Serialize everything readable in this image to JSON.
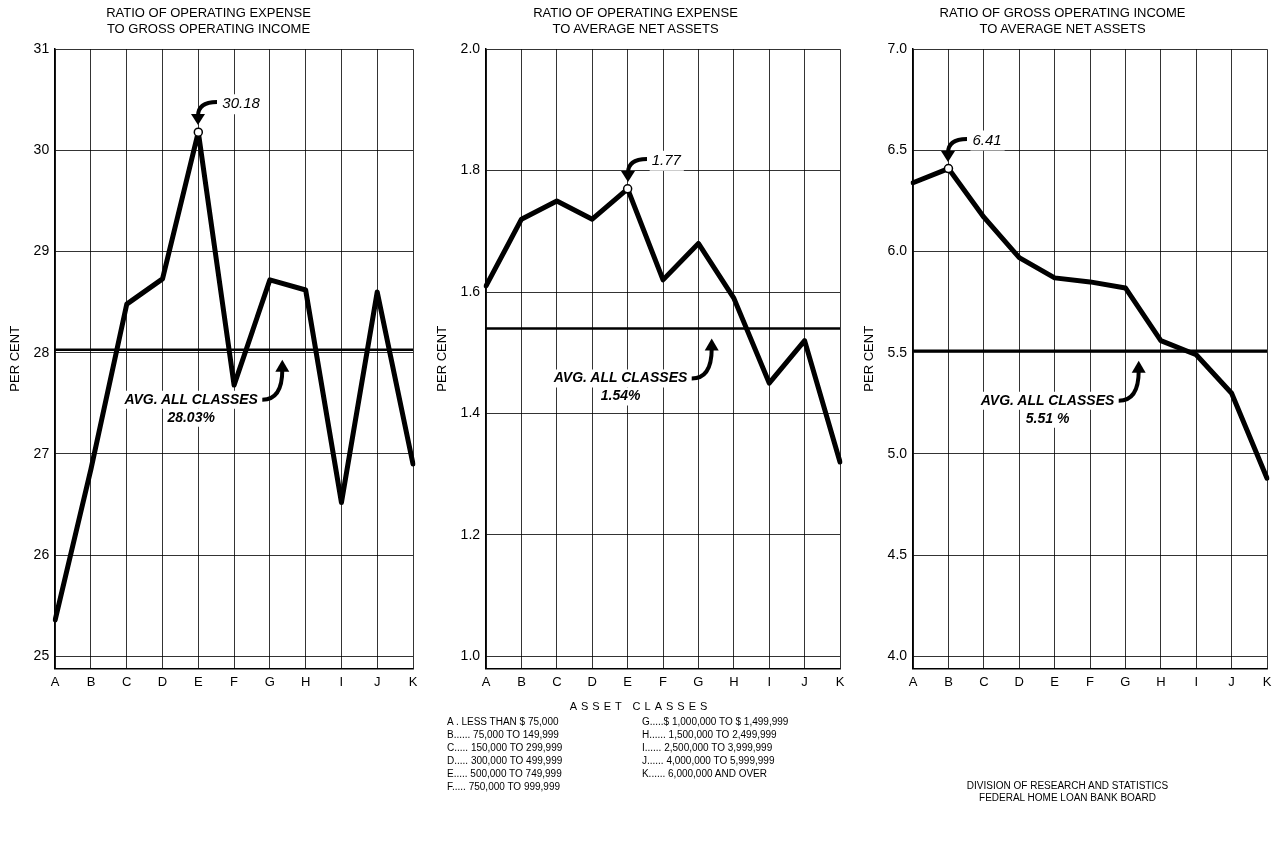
{
  "chart_data": [
    {
      "type": "line",
      "title": "RATIO OF OPERATING EXPENSE\nTO GROSS OPERATING INCOME",
      "ylabel": "PER CENT",
      "categories": [
        "A",
        "B",
        "C",
        "D",
        "E",
        "F",
        "G",
        "H",
        "I",
        "J",
        "K"
      ],
      "series": [
        {
          "color": "#000000",
          "values": [
            25.36,
            26.85,
            28.48,
            28.73,
            30.18,
            27.68,
            28.72,
            28.62,
            26.52,
            28.6,
            26.9
          ]
        }
      ],
      "ylim": [
        24.88,
        31
      ],
      "yticks": [
        25,
        26,
        27,
        28,
        29,
        30,
        31
      ],
      "grid": true,
      "legend": false,
      "marker": "none",
      "line_style": "solid",
      "ref_lines": [
        {
          "axis": "y",
          "value": 28.03,
          "label": "AVG. ALL CLASSES\n28.03%"
        }
      ],
      "annotations": [
        {
          "text": "30.18",
          "x": "E",
          "y": 30.18
        }
      ]
    },
    {
      "type": "line",
      "title": "RATIO OF OPERATING EXPENSE\nTO AVERAGE NET ASSETS",
      "ylabel": "PER CENT",
      "categories": [
        "A",
        "B",
        "C",
        "D",
        "E",
        "F",
        "G",
        "H",
        "I",
        "J",
        "K"
      ],
      "series": [
        {
          "color": "#000000",
          "values": [
            1.61,
            1.72,
            1.75,
            1.72,
            1.77,
            1.62,
            1.68,
            1.59,
            1.45,
            1.52,
            1.32
          ]
        }
      ],
      "ylim": [
        0.98,
        2.0
      ],
      "yticks": [
        {
          "value": 1.0,
          "label": "1.0"
        },
        1.2,
        1.4,
        1.6,
        1.8,
        {
          "value": 2.0,
          "label": "2.0"
        }
      ],
      "grid": true,
      "legend": false,
      "marker": "none",
      "line_style": "solid",
      "ref_lines": [
        {
          "axis": "y",
          "value": 1.54,
          "label": "AVG. ALL CLASSES\n1.54%"
        }
      ],
      "annotations": [
        {
          "text": "1.77",
          "x": "E",
          "y": 1.77
        },
        "ASSET CLASSES",
        "A . LESS THAN $ 75,000",
        "B...... 75,000 TO 149,999",
        "C..... 150,000 TO 299,999",
        "D..... 300,000 TO 499,999",
        "E..... 500,000 TO 749,999",
        "F..... 750,000 TO 999,999",
        "G.....$ 1,000,000 TO $ 1,499,999",
        "H...... 1,500,000 TO 2,499,999",
        "I...... 2,500,000 TO 3,999,999",
        "J...... 4,000,000 TO 5,999,999",
        "K...... 6,000,000 AND OVER"
      ]
    },
    {
      "type": "line",
      "title": "RATIO OF GROSS OPERATING INCOME\nTO AVERAGE NET ASSETS",
      "ylabel": "PER CENT",
      "categories": [
        "A",
        "B",
        "C",
        "D",
        "E",
        "F",
        "G",
        "H",
        "I",
        "J",
        "K"
      ],
      "series": [
        {
          "color": "#000000",
          "values": [
            6.34,
            6.41,
            6.17,
            5.97,
            5.87,
            5.85,
            5.82,
            5.56,
            5.49,
            5.3,
            4.88
          ]
        }
      ],
      "ylim": [
        3.94,
        7.0
      ],
      "yticks": [
        {
          "value": 4.0,
          "label": "4.0"
        },
        4.5,
        {
          "value": 5.0,
          "label": "5.0"
        },
        5.5,
        {
          "value": 6.0,
          "label": "6.0"
        },
        6.5,
        {
          "value": 7.0,
          "label": "7.0"
        }
      ],
      "grid": true,
      "legend": false,
      "marker": "none",
      "line_style": "solid",
      "ref_lines": [
        {
          "axis": "y",
          "value": 5.51,
          "label": "AVG. ALL CLASSES\n5.51 %"
        }
      ],
      "annotations": [
        {
          "text": "6.41",
          "x": "B",
          "y": 6.41
        },
        "DIVISION OF RESEARCH AND STATISTICS",
        "FEDERAL HOME LOAN BANK BOARD"
      ]
    }
  ]
}
